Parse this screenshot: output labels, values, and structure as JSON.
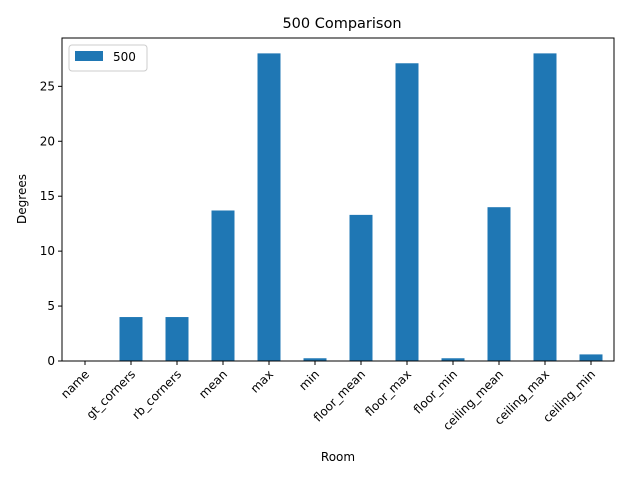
{
  "chart_data": {
    "type": "bar",
    "title": "500 Comparison",
    "xlabel": "Room",
    "ylabel": "Degrees",
    "categories": [
      "name",
      "gt_corners",
      "rb_corners",
      "mean",
      "max",
      "min",
      "floor_mean",
      "floor_max",
      "floor_min",
      "ceiling_mean",
      "ceiling_max",
      "ceiling_min"
    ],
    "series": [
      {
        "name": "500",
        "values": [
          0,
          4,
          4,
          13.7,
          28,
          0.25,
          13.3,
          27.1,
          0.25,
          14.0,
          28,
          0.6
        ],
        "color": "#1f77b4"
      }
    ],
    "ylim": [
      0,
      29.4
    ],
    "yticks": [
      0,
      5,
      10,
      15,
      20,
      25
    ],
    "grid": false,
    "legend_position": "top-left"
  }
}
